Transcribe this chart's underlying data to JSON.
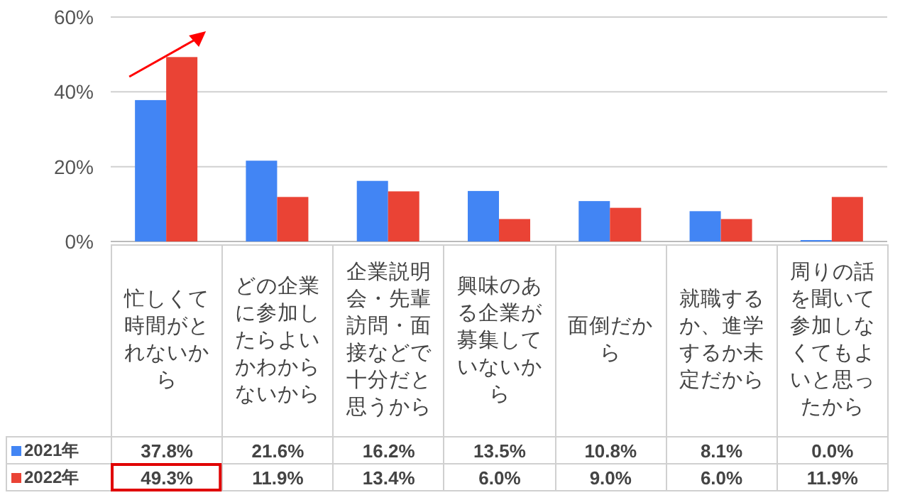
{
  "chart_data": {
    "type": "bar",
    "categories": [
      "忙しくて時間がとれないから",
      "どの企業に参加したらよいかわからないから",
      "企業説明会・先輩訪問・面接などで十分だと思うから",
      "興味のある企業が募集していないから",
      "面倒だから",
      "就職するか、進学するか未定だから",
      "周りの話を聞いて参加しなくてもよいと思ったから"
    ],
    "series": [
      {
        "name": "2021年",
        "color": "#4285f4",
        "values": [
          37.8,
          21.6,
          16.2,
          13.5,
          10.8,
          8.1,
          0.0
        ]
      },
      {
        "name": "2022年",
        "color": "#ea4335",
        "values": [
          49.3,
          11.9,
          13.4,
          6.0,
          9.0,
          6.0,
          11.9
        ]
      }
    ],
    "value_labels": [
      [
        "37.8%",
        "21.6%",
        "16.2%",
        "13.5%",
        "10.8%",
        "8.1%",
        "0.0%"
      ],
      [
        "49.3%",
        "11.9%",
        "13.4%",
        "6.0%",
        "9.0%",
        "6.0%",
        "11.9%"
      ]
    ],
    "ylim": [
      0,
      60
    ],
    "yticks": [
      {
        "value": 0,
        "label": "0%"
      },
      {
        "value": 20,
        "label": "20%"
      },
      {
        "value": 40,
        "label": "40%"
      },
      {
        "value": 60,
        "label": "60%"
      }
    ],
    "grid": "y",
    "legend": "bottom left"
  }
}
